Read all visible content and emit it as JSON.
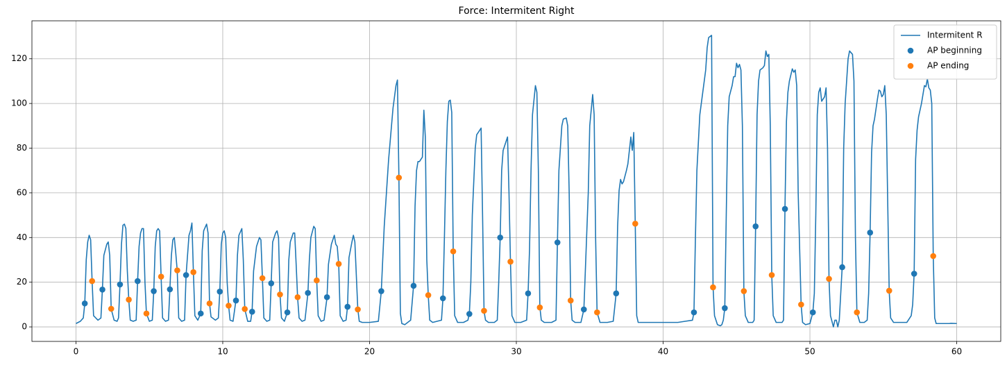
{
  "chart_data": {
    "type": "line",
    "title": "Force: Intermitent Right",
    "xlim": [
      -3,
      63
    ],
    "ylim": [
      -6.5,
      137
    ],
    "xticks": [
      0,
      10,
      20,
      30,
      40,
      50,
      60
    ],
    "yticks": [
      0,
      20,
      40,
      60,
      80,
      100,
      120
    ],
    "grid": true,
    "legend": "upper right",
    "series": [
      {
        "name": "Intermitent R",
        "color": "#1f77b4",
        "type": "line",
        "x": [
          0,
          0.3,
          0.5,
          0.6,
          0.7,
          0.8,
          0.9,
          1.0,
          1.1,
          1.2,
          1.5,
          1.7,
          1.8,
          1.9,
          2.1,
          2.2,
          2.3,
          2.4,
          2.6,
          2.8,
          2.9,
          3.0,
          3.1,
          3.2,
          3.3,
          3.4,
          3.5,
          3.6,
          3.7,
          3.9,
          4.1,
          4.2,
          4.3,
          4.4,
          4.5,
          4.6,
          4.7,
          4.8,
          5.0,
          5.2,
          5.3,
          5.4,
          5.5,
          5.6,
          5.7,
          5.8,
          5.9,
          6.1,
          6.3,
          6.4,
          6.5,
          6.6,
          6.7,
          6.8,
          6.9,
          7.0,
          7.2,
          7.4,
          7.5,
          7.6,
          7.7,
          7.8,
          7.9,
          8.0,
          8.1,
          8.3,
          8.5,
          8.6,
          8.7,
          8.9,
          9.0,
          9.1,
          9.2,
          9.5,
          9.7,
          9.8,
          9.9,
          10.0,
          10.1,
          10.2,
          10.3,
          10.4,
          10.5,
          10.7,
          10.9,
          11.0,
          11.1,
          11.3,
          11.4,
          11.5,
          11.7,
          11.9,
          12.0,
          12.1,
          12.3,
          12.5,
          12.6,
          12.7,
          12.8,
          13.0,
          13.2,
          13.3,
          13.4,
          13.6,
          13.7,
          13.8,
          13.9,
          14.0,
          14.2,
          14.4,
          14.5,
          14.6,
          14.8,
          14.9,
          15.0,
          15.1,
          15.2,
          15.4,
          15.6,
          15.8,
          15.9,
          16.0,
          16.2,
          16.3,
          16.4,
          16.5,
          16.7,
          16.9,
          17.1,
          17.2,
          17.4,
          17.6,
          17.7,
          17.8,
          17.9,
          18.0,
          18.2,
          18.4,
          18.5,
          18.6,
          18.8,
          18.9,
          19.0,
          19.2,
          19.3,
          19.5,
          20.0,
          20.6,
          20.8,
          21.0,
          21.3,
          21.6,
          21.8,
          21.9,
          22.0,
          22.1,
          22.2,
          22.4,
          22.6,
          22.8,
          23.0,
          23.1,
          23.2,
          23.3,
          23.4,
          23.5,
          23.6,
          23.7,
          23.8,
          23.9,
          24.0,
          24.1,
          24.3,
          24.6,
          24.9,
          25.0,
          25.1,
          25.2,
          25.3,
          25.4,
          25.5,
          25.6,
          25.7,
          25.8,
          26.0,
          26.4,
          26.7,
          26.8,
          26.9,
          27.0,
          27.2,
          27.3,
          27.5,
          27.6,
          27.7,
          27.8,
          27.9,
          28.1,
          28.5,
          28.7,
          28.8,
          28.9,
          29.0,
          29.1,
          29.3,
          29.4,
          29.5,
          29.6,
          29.7,
          29.9,
          30.3,
          30.7,
          30.8,
          30.9,
          31.0,
          31.1,
          31.3,
          31.4,
          31.5,
          31.6,
          31.7,
          31.9,
          32.4,
          32.7,
          32.8,
          32.9,
          33.0,
          33.1,
          33.2,
          33.4,
          33.5,
          33.6,
          33.7,
          33.8,
          34.0,
          34.4,
          34.6,
          34.7,
          34.9,
          35.0,
          35.2,
          35.3,
          35.4,
          35.5,
          35.7,
          36.2,
          36.6,
          36.8,
          36.9,
          37.0,
          37.1,
          37.2,
          37.3,
          37.5,
          37.6,
          37.7,
          37.8,
          37.9,
          38.0,
          38.1,
          38.2,
          38.3,
          40.0,
          41.0,
          41.5,
          42.0,
          42.1,
          42.2,
          42.3,
          42.5,
          42.7,
          42.9,
          43.0,
          43.1,
          43.3,
          43.4,
          43.5,
          43.7,
          43.9,
          44.0,
          44.1,
          44.2,
          44.3,
          44.4,
          44.5,
          44.7,
          44.8,
          44.9,
          45.0,
          45.1,
          45.2,
          45.3,
          45.4,
          45.5,
          45.6,
          45.8,
          46.1,
          46.2,
          46.3,
          46.4,
          46.5,
          46.6,
          46.8,
          46.9,
          47.0,
          47.1,
          47.2,
          47.3,
          47.4,
          47.5,
          47.7,
          48.1,
          48.2,
          48.3,
          48.4,
          48.5,
          48.6,
          48.8,
          48.9,
          49.0,
          49.1,
          49.2,
          49.4,
          49.5,
          49.7,
          50.0,
          50.2,
          50.3,
          50.4,
          50.5,
          50.6,
          50.7,
          50.8,
          51.0,
          51.1,
          51.2,
          51.3,
          51.4,
          51.6,
          51.7,
          51.8,
          51.9,
          52.0,
          52.2,
          52.3,
          52.4,
          52.5,
          52.6,
          52.7,
          52.9,
          53.0,
          53.1,
          53.2,
          53.4,
          53.7,
          53.9,
          54.0,
          54.1,
          54.2,
          54.3,
          54.4,
          54.6,
          54.7,
          54.8,
          54.9,
          55.0,
          55.1,
          55.2,
          55.4,
          55.5,
          55.7,
          56.0,
          56.6,
          56.9,
          57.0,
          57.1,
          57.2,
          57.3,
          57.4,
          57.6,
          57.8,
          57.9,
          58.0,
          58.1,
          58.2,
          58.3,
          58.4,
          58.5,
          58.6,
          59.0,
          59.5,
          59.6,
          60.0
        ],
        "values": [
          1.5,
          2.5,
          4,
          10.5,
          30,
          38,
          41,
          39,
          20.5,
          5,
          3,
          4,
          16.7,
          32,
          37,
          38,
          32,
          8,
          3,
          2.5,
          4,
          19,
          37,
          45.5,
          46,
          44,
          25,
          12,
          3,
          2.5,
          3,
          20.5,
          36,
          42,
          44,
          44,
          20,
          6,
          2.5,
          3,
          16,
          36,
          43,
          44,
          43,
          22.5,
          4,
          2.5,
          3,
          17,
          32,
          39,
          40,
          33,
          25,
          4,
          2.5,
          3,
          23,
          32,
          41,
          43,
          46.5,
          24.5,
          5,
          3,
          6,
          34,
          43,
          46,
          42,
          10.5,
          4.5,
          3,
          4,
          16,
          37,
          42,
          43,
          40,
          20,
          9.5,
          3,
          2.5,
          12,
          32,
          41,
          44,
          30,
          8,
          2.5,
          2.5,
          7,
          25,
          36,
          40,
          39,
          22,
          4,
          2.5,
          3,
          19.5,
          38,
          42,
          43,
          40,
          14.5,
          4,
          2.5,
          6.5,
          30,
          38,
          42,
          42,
          28,
          13,
          4,
          2.5,
          3,
          15,
          30,
          40,
          45,
          44,
          21,
          5,
          2.5,
          3,
          13,
          28,
          37,
          41,
          37,
          36,
          28,
          5,
          2.5,
          3,
          9,
          31,
          38,
          41,
          38,
          8,
          2.5,
          2,
          2,
          2.5,
          16,
          45,
          75,
          98,
          108,
          110.5,
          67,
          6,
          1.5,
          1,
          2,
          3,
          18.5,
          54,
          70,
          74,
          74,
          75,
          76,
          97,
          85,
          30,
          14,
          3,
          2,
          2.5,
          3,
          12.8,
          40,
          70,
          92,
          101,
          101.5,
          96,
          34,
          5,
          2,
          2,
          3,
          6,
          20,
          50,
          80,
          86,
          88,
          89,
          50,
          7,
          3,
          2,
          2,
          3,
          20,
          40,
          70,
          79,
          83,
          85,
          60,
          29,
          5,
          2,
          2,
          3,
          15,
          35,
          70,
          95,
          108,
          105,
          70,
          9,
          3,
          2,
          2,
          3,
          38,
          70,
          80,
          90,
          93,
          93.5,
          90,
          60,
          12,
          3,
          2,
          2,
          7.8,
          25,
          60,
          90,
          104,
          95,
          40,
          6.5,
          2,
          2,
          2.5,
          15,
          45,
          61,
          66,
          64,
          65,
          70,
          73,
          79,
          85,
          79,
          87,
          46,
          5,
          2,
          2,
          2,
          2.5,
          3,
          6.5,
          40,
          70,
          95,
          105,
          115,
          125,
          129.5,
          130.5,
          18,
          5,
          1,
          0.5,
          1,
          3,
          8.4,
          50,
          90,
          103,
          108,
          112,
          112,
          118,
          116,
          117.5,
          115,
          90,
          16,
          5,
          2,
          2,
          3,
          45,
          95,
          110,
          115,
          116,
          117,
          123.5,
          121,
          122,
          90,
          23,
          5,
          2,
          2,
          3,
          53,
          92,
          105,
          110,
          115.5,
          114,
          115,
          108,
          60,
          10,
          2,
          1,
          1.5,
          6.5,
          15,
          50,
          95,
          105,
          107,
          101,
          103,
          107,
          80,
          21.5,
          5,
          0,
          3,
          3,
          0,
          3,
          27,
          80,
          100,
          110,
          120,
          123.5,
          122,
          110,
          40,
          6.5,
          2,
          2,
          3,
          15,
          42,
          78,
          90,
          93,
          102,
          106,
          105.5,
          103,
          104,
          108,
          95,
          16,
          4,
          2,
          2,
          2,
          5,
          10,
          24,
          75,
          88,
          94,
          100,
          108,
          107.5,
          111,
          107,
          106,
          100,
          32,
          4,
          1.5,
          1.5,
          1.5,
          1.6,
          1.5
        ]
      },
      {
        "name": "AP beginning",
        "color": "#1f77b4",
        "type": "scatter",
        "x": [
          0.6,
          1.8,
          3.0,
          4.2,
          5.3,
          6.4,
          7.5,
          8.5,
          9.8,
          10.9,
          12.0,
          13.3,
          14.4,
          15.8,
          17.1,
          18.5,
          20.8,
          23.0,
          25.0,
          26.8,
          28.9,
          30.8,
          32.8,
          34.6,
          36.8,
          42.1,
          44.2,
          46.3,
          48.3,
          50.2,
          52.2,
          54.1,
          57.1
        ],
        "values": [
          10.5,
          16.7,
          19,
          20.5,
          16,
          16.8,
          23.2,
          6,
          15.8,
          11.8,
          6.8,
          19.5,
          6.5,
          15.2,
          13.3,
          9,
          16,
          18.4,
          12.8,
          5.8,
          40,
          15,
          37.8,
          7.8,
          15,
          6.5,
          8.4,
          45,
          52.8,
          6.5,
          26.7,
          42.2,
          23.8
        ]
      },
      {
        "name": "AP ending",
        "color": "#ff7f0e",
        "type": "scatter",
        "x": [
          1.1,
          2.4,
          3.6,
          4.8,
          5.8,
          6.9,
          8.0,
          9.1,
          10.4,
          11.5,
          12.7,
          13.9,
          15.1,
          16.4,
          17.9,
          19.2,
          22.0,
          24.0,
          25.7,
          27.8,
          29.6,
          31.6,
          33.7,
          35.5,
          38.1,
          43.4,
          45.5,
          47.4,
          49.4,
          51.3,
          53.2,
          55.4,
          58.4
        ],
        "values": [
          20.5,
          8.1,
          12.2,
          6,
          22.5,
          25.3,
          24.5,
          10.5,
          9.5,
          8,
          21.8,
          14.5,
          13.3,
          20.8,
          28.2,
          7.8,
          66.8,
          14.2,
          33.8,
          7.2,
          29.2,
          8.7,
          11.8,
          6.5,
          46.2,
          17.7,
          16,
          23.2,
          10,
          21.5,
          6.5,
          16.2,
          31.7
        ]
      }
    ]
  }
}
